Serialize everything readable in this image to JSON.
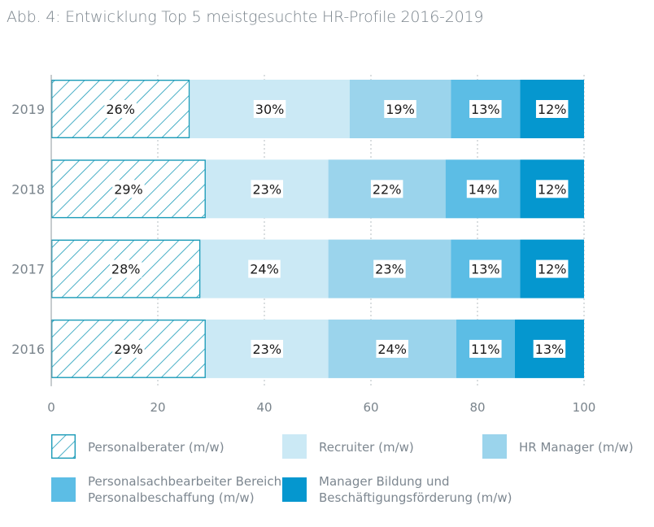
{
  "title": "Abb. 4: Entwicklung Top 5 meistgesuchte HR-Profile 2016-2019",
  "chart_data": {
    "type": "bar",
    "orientation": "horizontal",
    "stacked": true,
    "categories": [
      "2019",
      "2018",
      "2017",
      "2016"
    ],
    "series": [
      {
        "name": "Personalberater (m/w)",
        "values": [
          26,
          29,
          28,
          29
        ],
        "color": "#1b9bb8",
        "pattern": "hatch"
      },
      {
        "name": "Recruiter (m/w)",
        "values": [
          30,
          23,
          24,
          23
        ],
        "color": "#cbe9f5"
      },
      {
        "name": "HR Manager (m/w)",
        "values": [
          19,
          22,
          23,
          24
        ],
        "color": "#9bd4ec"
      },
      {
        "name": "Personalsachbearbeiter Bereich Personalbeschaffung (m/w)",
        "values": [
          13,
          14,
          13,
          11
        ],
        "color": "#5cbde5"
      },
      {
        "name": "Manager Bildung und Beschäftigungsförderung (m/w)",
        "values": [
          12,
          12,
          12,
          13
        ],
        "color": "#0597cf"
      }
    ],
    "xlim": [
      0,
      100
    ],
    "xticks": [
      0,
      20,
      40,
      60,
      80,
      100
    ],
    "value_suffix": "%",
    "grid": "vertical dotted",
    "legend_position": "bottom"
  },
  "legend": [
    {
      "lines": [
        "Personalberater (m/w)"
      ]
    },
    {
      "lines": [
        "Recruiter (m/w)"
      ]
    },
    {
      "lines": [
        "HR Manager (m/w)"
      ]
    },
    {
      "lines": [
        "Personalsachbearbeiter Bereich",
        "Personalbeschaffung (m/w)"
      ]
    },
    {
      "lines": [
        "Manager Bildung und",
        "Beschäftigungsförderung (m/w)"
      ]
    }
  ]
}
